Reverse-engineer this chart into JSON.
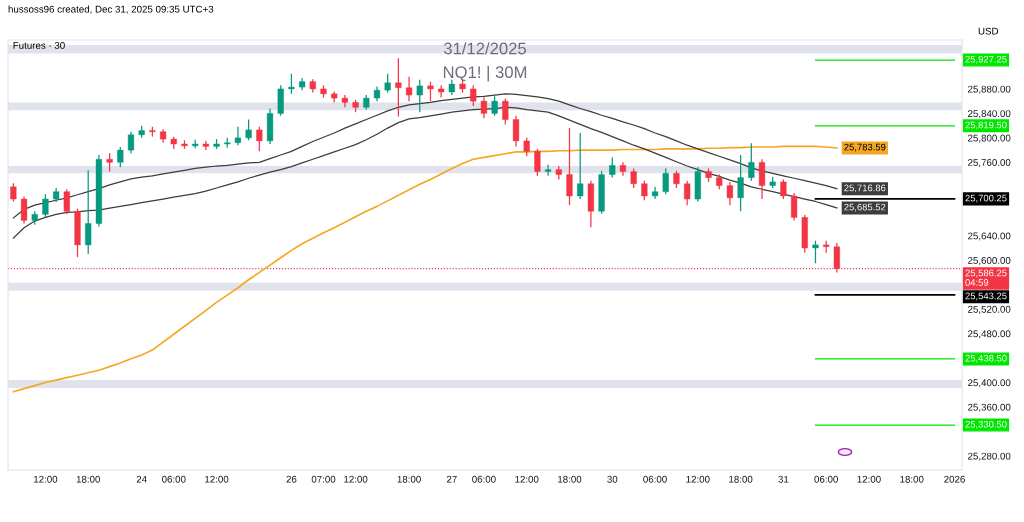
{
  "chart_data": {
    "type": "candlestick",
    "title": "31/12/2025",
    "subtitle": "NQ1! | 30M",
    "ylabel": "USD",
    "annotations": [
      "hussoss96 created, Dec 31, 2025 09:35 UTC+3",
      "Futures · 30"
    ],
    "categories": [
      null,
      null,
      null,
      "12:00",
      null,
      null,
      null,
      "18:00",
      null,
      null,
      null,
      null,
      "24",
      null,
      null,
      "06:00",
      null,
      null,
      null,
      "12:00",
      null,
      null,
      null,
      null,
      null,
      null,
      "26",
      null,
      null,
      "07:00",
      null,
      null,
      "12:00",
      null,
      null,
      null,
      null,
      "18:00",
      null,
      null,
      null,
      "27",
      null,
      null,
      "06:00",
      null,
      null,
      null,
      "12:00",
      null,
      null,
      null,
      "18:00",
      null,
      null,
      null,
      "30",
      null,
      null,
      null,
      "06:00",
      null,
      null,
      null,
      "12:00",
      null,
      null,
      null,
      "18:00",
      null,
      null,
      null,
      "31",
      null,
      null,
      null,
      "06:00",
      null,
      null,
      null,
      "12:00",
      null,
      null,
      null,
      "18:00",
      null,
      null,
      null,
      "2026"
    ],
    "ohlc": [
      [
        25720,
        25726,
        25696,
        25700
      ],
      [
        25700,
        25704,
        25660,
        25665
      ],
      [
        25665,
        25680,
        25658,
        25675
      ],
      [
        25675,
        25708,
        25670,
        25700
      ],
      [
        25700,
        25718,
        25695,
        25712
      ],
      [
        25712,
        25716,
        25675,
        25680
      ],
      [
        25680,
        25684,
        25605,
        25625
      ],
      [
        25625,
        25747,
        25610,
        25660
      ],
      [
        25660,
        25772,
        25655,
        25765
      ],
      [
        25765,
        25775,
        25745,
        25760
      ],
      [
        25760,
        25785,
        25752,
        25780
      ],
      [
        25780,
        25810,
        25775,
        25805
      ],
      [
        25805,
        25820,
        25800,
        25812
      ],
      [
        25812,
        25818,
        25802,
        25810
      ],
      [
        25810,
        25814,
        25792,
        25798
      ],
      [
        25798,
        25802,
        25782,
        25790
      ],
      [
        25790,
        25796,
        25782,
        25787
      ],
      [
        25787,
        25797,
        25783,
        25790
      ],
      [
        25790,
        25795,
        25780,
        25786
      ],
      [
        25786,
        25798,
        25782,
        25790
      ],
      [
        25790,
        25800,
        25784,
        25792
      ],
      [
        25792,
        25818,
        25788,
        25800
      ],
      [
        25800,
        25830,
        25796,
        25813
      ],
      [
        25813,
        25818,
        25778,
        25795
      ],
      [
        25795,
        25848,
        25790,
        25840
      ],
      [
        25840,
        25886,
        25836,
        25880
      ],
      [
        25880,
        25905,
        25872,
        25883
      ],
      [
        25883,
        25898,
        25878,
        25892
      ],
      [
        25892,
        25896,
        25874,
        25880
      ],
      [
        25880,
        25886,
        25866,
        25872
      ],
      [
        25872,
        25876,
        25858,
        25865
      ],
      [
        25865,
        25870,
        25850,
        25858
      ],
      [
        25858,
        25862,
        25842,
        25850
      ],
      [
        25850,
        25870,
        25846,
        25865
      ],
      [
        25865,
        25884,
        25860,
        25878
      ],
      [
        25878,
        25905,
        25874,
        25890
      ],
      [
        25890,
        25930,
        25835,
        25882
      ],
      [
        25882,
        25900,
        25860,
        25870
      ],
      [
        25870,
        25895,
        25842,
        25885
      ],
      [
        25885,
        25892,
        25860,
        25880
      ],
      [
        25880,
        25886,
        25866,
        25875
      ],
      [
        25875,
        25895,
        25870,
        25888
      ],
      [
        25888,
        25895,
        25874,
        25880
      ],
      [
        25880,
        25886,
        25852,
        25860
      ],
      [
        25860,
        25866,
        25832,
        25840
      ],
      [
        25840,
        25868,
        25836,
        25860
      ],
      [
        25860,
        25864,
        25822,
        25830
      ],
      [
        25830,
        25836,
        25786,
        25795
      ],
      [
        25795,
        25800,
        25770,
        25778
      ],
      [
        25778,
        25782,
        25738,
        25745
      ],
      [
        25745,
        25756,
        25738,
        25748
      ],
      [
        25748,
        25754,
        25732,
        25740
      ],
      [
        25740,
        25816,
        25690,
        25705
      ],
      [
        25705,
        25808,
        25700,
        25725
      ],
      [
        25725,
        25730,
        25654,
        25680
      ],
      [
        25680,
        25746,
        25676,
        25740
      ],
      [
        25740,
        25768,
        25735,
        25755
      ],
      [
        25755,
        25760,
        25738,
        25745
      ],
      [
        25745,
        25750,
        25718,
        25725
      ],
      [
        25725,
        25730,
        25698,
        25705
      ],
      [
        25705,
        25720,
        25700,
        25712
      ],
      [
        25712,
        25750,
        25708,
        25742
      ],
      [
        25742,
        25746,
        25718,
        25725
      ],
      [
        25725,
        25730,
        25690,
        25700
      ],
      [
        25700,
        25752,
        25696,
        25745
      ],
      [
        25745,
        25750,
        25728,
        25735
      ],
      [
        25735,
        25740,
        25716,
        25722
      ],
      [
        25722,
        25728,
        25690,
        25702
      ],
      [
        25702,
        25772,
        25680,
        25735
      ],
      [
        25735,
        25791,
        25730,
        25760
      ],
      [
        25760,
        25765,
        25700,
        25722
      ],
      [
        25722,
        25736,
        25718,
        25728
      ],
      [
        25728,
        25732,
        25700,
        25705
      ],
      [
        25705,
        25710,
        25665,
        25670
      ],
      [
        25670,
        25674,
        25612,
        25620
      ],
      [
        25620,
        25632,
        25595,
        25625
      ],
      [
        25625,
        25632,
        25612,
        25622
      ],
      [
        25622,
        25628,
        25580,
        25586.25
      ],
      null,
      null,
      null,
      null,
      null,
      null,
      null,
      null,
      null,
      null,
      null
    ],
    "colors": [
      "#f23645",
      "#f23645",
      "#089981",
      "#089981",
      "#089981",
      "#f23645",
      "#f23645",
      "#089981",
      "#089981",
      "#f23645",
      "#089981",
      "#089981",
      "#089981",
      "#f23645",
      "#f23645",
      "#f23645",
      "#f23645",
      "#089981",
      "#f23645",
      "#089981",
      "#089981",
      "#089981",
      "#089981",
      "#f23645",
      "#089981",
      "#089981",
      "#089981",
      "#089981",
      "#f23645",
      "#f23645",
      "#f23645",
      "#f23645",
      "#f23645",
      "#089981",
      "#089981",
      "#089981",
      "#f23645",
      "#f23645",
      "#089981",
      "#f23645",
      "#f23645",
      "#089981",
      "#f23645",
      "#f23645",
      "#f23645",
      "#089981",
      "#f23645",
      "#f23645",
      "#f23645",
      "#f23645",
      "#089981",
      "#f23645",
      "#f23645",
      "#089981",
      "#f23645",
      "#089981",
      "#089981",
      "#f23645",
      "#f23645",
      "#f23645",
      "#089981",
      "#089981",
      "#f23645",
      "#f23645",
      "#089981",
      "#f23645",
      "#f23645",
      "#f23645",
      "#089981",
      "#089981",
      "#f23645",
      "#089981",
      "#f23645",
      "#f23645",
      "#f23645",
      "#089981",
      "#f23645",
      "#f23645",
      null,
      null,
      null,
      null,
      null,
      null,
      null,
      null,
      null,
      null,
      null
    ],
    "series": [
      {
        "type": "line",
        "color": "#f5a623",
        "values": [
          25385,
          25390,
          25395,
          25400,
          25404,
          25408,
          25412,
          25416,
          25420,
          25426,
          25432,
          25439,
          25445,
          25453,
          25466,
          25479,
          25492,
          25505,
          25518,
          25531,
          25543,
          25555,
          25568,
          25580,
          25592,
          25604,
          25616,
          25627,
          25636,
          25645,
          25653,
          25662,
          25671,
          25680,
          25688,
          25697,
          25706,
          25715,
          25724,
          25732,
          25741,
          25750,
          25758,
          25765,
          25768,
          25771,
          25774,
          25777,
          25777,
          25778,
          25778,
          25779,
          25779,
          25780,
          25780,
          25780,
          25780,
          25781,
          25781,
          25781,
          25781,
          25782,
          25782,
          25782,
          25782,
          25783,
          25783,
          25784,
          25784,
          25785,
          25785,
          25785,
          25786,
          25786,
          25786,
          25786,
          25785,
          25783.59,
          null,
          null,
          null,
          null,
          null,
          null,
          null,
          null,
          null,
          null,
          null
        ],
        "value_labels": [
          null,
          null,
          null,
          null,
          null,
          null,
          null,
          null,
          null,
          null,
          null,
          null,
          null,
          null,
          null,
          null,
          null,
          null,
          null,
          null,
          null,
          null,
          null,
          null,
          null,
          null,
          null,
          null,
          null,
          null,
          null,
          null,
          null,
          null,
          null,
          null,
          null,
          null,
          null,
          null,
          null,
          null,
          null,
          null,
          null,
          null,
          null,
          null,
          null,
          null,
          null,
          null,
          null,
          null,
          null,
          null,
          null,
          null,
          null,
          null,
          null,
          null,
          null,
          null,
          null,
          null,
          null,
          null,
          null,
          null,
          null,
          null,
          null,
          null,
          null,
          null,
          null,
          "25,783.59",
          null,
          null,
          null,
          null,
          null,
          null,
          null,
          null,
          null,
          null,
          null
        ]
      },
      {
        "type": "line",
        "color": "#3c3c3c",
        "values": [
          25669,
          25683,
          25690,
          25694,
          25698,
          25702,
          25707,
          25712,
          25717,
          25723,
          25728,
          25733,
          25736,
          25738,
          25741,
          25744,
          25747,
          25750,
          25752,
          25754,
          25755,
          25757,
          25759,
          25760,
          25766,
          25772,
          25778,
          25786,
          25794,
          25801,
          25808,
          25816,
          25823,
          25830,
          25837,
          25844,
          25850,
          25854,
          25856,
          25858,
          25861,
          25863,
          25865,
          25867,
          25868,
          25870,
          25872,
          25871,
          25869,
          25867,
          25864,
          25860,
          25854,
          25848,
          25843,
          25837,
          25832,
          25826,
          25821,
          25815,
          25808,
          25802,
          25795,
          25788,
          25782,
          25776,
          25770,
          25764,
          25758,
          25751,
          25746,
          25742,
          25738,
          25734,
          25730,
          25726,
          25722,
          25716.86,
          null,
          null,
          null,
          null,
          null,
          null,
          null,
          null,
          null,
          null,
          null
        ],
        "value_labels": [
          null,
          null,
          null,
          null,
          null,
          null,
          null,
          null,
          null,
          null,
          null,
          null,
          null,
          null,
          null,
          null,
          null,
          null,
          null,
          null,
          null,
          null,
          null,
          null,
          null,
          null,
          null,
          null,
          null,
          null,
          null,
          null,
          null,
          null,
          null,
          null,
          null,
          null,
          null,
          null,
          null,
          null,
          null,
          null,
          null,
          null,
          null,
          null,
          null,
          null,
          null,
          null,
          null,
          null,
          null,
          null,
          null,
          null,
          null,
          null,
          null,
          null,
          null,
          null,
          null,
          null,
          null,
          null,
          null,
          null,
          null,
          null,
          null,
          null,
          null,
          null,
          null,
          "25,716.86",
          null,
          null,
          null,
          null,
          null,
          null,
          null,
          null,
          null,
          null,
          null
        ]
      },
      {
        "type": "line",
        "color": "#3c3c3c",
        "values": [
          25636,
          25653,
          25664,
          25670,
          25675,
          25678,
          25679,
          25681,
          25682,
          25685,
          25688,
          25691,
          25694,
          25697,
          25700,
          25703,
          25706,
          25709,
          25713,
          25718,
          25723,
          25728,
          25734,
          25739,
          25744,
          25748,
          25753,
          25759,
          25765,
          25771,
          25777,
          25783,
          25789,
          25797,
          25806,
          25816,
          25825,
          25831,
          25833,
          25836,
          25839,
          25842,
          25844,
          25846,
          25847,
          25848,
          25850,
          25849,
          25846,
          25844,
          25842,
          25836,
          25829,
          25822,
          25815,
          25809,
          25802,
          25795,
          25788,
          25782,
          25775,
          25768,
          25761,
          25754,
          25748,
          25742,
          25737,
          25731,
          25726,
          25720,
          25716,
          25712,
          25708,
          25704,
          25700,
          25696,
          25691,
          25685.52,
          null,
          null,
          null,
          null,
          null,
          null,
          null,
          null,
          null,
          null,
          null
        ],
        "value_labels": [
          null,
          null,
          null,
          null,
          null,
          null,
          null,
          null,
          null,
          null,
          null,
          null,
          null,
          null,
          null,
          null,
          null,
          null,
          null,
          null,
          null,
          null,
          null,
          null,
          null,
          null,
          null,
          null,
          null,
          null,
          null,
          null,
          null,
          null,
          null,
          null,
          null,
          null,
          null,
          null,
          null,
          null,
          null,
          null,
          null,
          null,
          null,
          null,
          null,
          null,
          null,
          null,
          null,
          null,
          null,
          null,
          null,
          null,
          null,
          null,
          null,
          null,
          null,
          null,
          null,
          null,
          null,
          null,
          null,
          null,
          null,
          null,
          null,
          null,
          null,
          null,
          null,
          "25,685.52",
          null,
          null,
          null,
          null,
          null,
          null,
          null,
          null,
          null,
          null,
          null
        ]
      },
      {
        "type": "line",
        "color": "#00e600",
        "values": [
          null,
          null,
          null,
          null,
          null,
          null,
          null,
          null,
          null,
          null,
          null,
          null,
          null,
          null,
          null,
          null,
          null,
          null,
          null,
          null,
          null,
          null,
          null,
          null,
          null,
          null,
          null,
          null,
          null,
          null,
          null,
          null,
          null,
          null,
          null,
          null,
          null,
          null,
          null,
          null,
          null,
          null,
          null,
          null,
          null,
          null,
          null,
          null,
          null,
          null,
          null,
          null,
          null,
          null,
          null,
          null,
          null,
          null,
          null,
          null,
          null,
          null,
          null,
          null,
          null,
          null,
          null,
          null,
          null,
          null,
          null,
          null,
          null,
          null,
          null,
          25927.25,
          25927.25,
          25927.25,
          25927.25,
          25927.25,
          25927.25,
          25927.25,
          25927.25,
          25927.25,
          25927.25,
          25927.25,
          25927.25,
          25927.25,
          25927.25
        ],
        "value_labels": [
          null,
          null,
          null,
          null,
          null,
          null,
          null,
          null,
          null,
          null,
          null,
          null,
          null,
          null,
          null,
          null,
          null,
          null,
          null,
          null,
          null,
          null,
          null,
          null,
          null,
          null,
          null,
          null,
          null,
          null,
          null,
          null,
          null,
          null,
          null,
          null,
          null,
          null,
          null,
          null,
          null,
          null,
          null,
          null,
          null,
          null,
          null,
          null,
          null,
          null,
          null,
          null,
          null,
          null,
          null,
          null,
          null,
          null,
          null,
          null,
          null,
          null,
          null,
          null,
          null,
          null,
          null,
          null,
          null,
          null,
          null,
          null,
          null,
          null,
          null,
          null,
          null,
          null,
          null,
          null,
          null,
          null,
          null,
          null,
          null,
          null,
          null,
          null,
          "25,927.25"
        ]
      },
      {
        "type": "line",
        "color": "#00e600",
        "values": [
          null,
          null,
          null,
          null,
          null,
          null,
          null,
          null,
          null,
          null,
          null,
          null,
          null,
          null,
          null,
          null,
          null,
          null,
          null,
          null,
          null,
          null,
          null,
          null,
          null,
          null,
          null,
          null,
          null,
          null,
          null,
          null,
          null,
          null,
          null,
          null,
          null,
          null,
          null,
          null,
          null,
          null,
          null,
          null,
          null,
          null,
          null,
          null,
          null,
          null,
          null,
          null,
          null,
          null,
          null,
          null,
          null,
          null,
          null,
          null,
          null,
          null,
          null,
          null,
          null,
          null,
          null,
          null,
          null,
          null,
          null,
          null,
          null,
          null,
          null,
          25819.5,
          25819.5,
          25819.5,
          25819.5,
          25819.5,
          25819.5,
          25819.5,
          25819.5,
          25819.5,
          25819.5,
          25819.5,
          25819.5,
          25819.5,
          25819.5
        ],
        "value_labels": [
          null,
          null,
          null,
          null,
          null,
          null,
          null,
          null,
          null,
          null,
          null,
          null,
          null,
          null,
          null,
          null,
          null,
          null,
          null,
          null,
          null,
          null,
          null,
          null,
          null,
          null,
          null,
          null,
          null,
          null,
          null,
          null,
          null,
          null,
          null,
          null,
          null,
          null,
          null,
          null,
          null,
          null,
          null,
          null,
          null,
          null,
          null,
          null,
          null,
          null,
          null,
          null,
          null,
          null,
          null,
          null,
          null,
          null,
          null,
          null,
          null,
          null,
          null,
          null,
          null,
          null,
          null,
          null,
          null,
          null,
          null,
          null,
          null,
          null,
          null,
          null,
          null,
          null,
          null,
          null,
          null,
          null,
          null,
          null,
          null,
          null,
          null,
          null,
          "25,819.50"
        ]
      },
      {
        "type": "line",
        "color": "#000000",
        "values": [
          null,
          null,
          null,
          null,
          null,
          null,
          null,
          null,
          null,
          null,
          null,
          null,
          null,
          null,
          null,
          null,
          null,
          null,
          null,
          null,
          null,
          null,
          null,
          null,
          null,
          null,
          null,
          null,
          null,
          null,
          null,
          null,
          null,
          null,
          null,
          null,
          null,
          null,
          null,
          null,
          null,
          null,
          null,
          null,
          null,
          null,
          null,
          null,
          null,
          null,
          null,
          null,
          null,
          null,
          null,
          null,
          null,
          null,
          null,
          null,
          null,
          null,
          null,
          null,
          null,
          null,
          null,
          null,
          null,
          null,
          null,
          null,
          null,
          null,
          null,
          25700.25,
          25700.25,
          25700.25,
          25700.25,
          25700.25,
          25700.25,
          25700.25,
          25700.25,
          25700.25,
          25700.25,
          25700.25,
          25700.25,
          25700.25,
          25700.25
        ],
        "value_labels": [
          null,
          null,
          null,
          null,
          null,
          null,
          null,
          null,
          null,
          null,
          null,
          null,
          null,
          null,
          null,
          null,
          null,
          null,
          null,
          null,
          null,
          null,
          null,
          null,
          null,
          null,
          null,
          null,
          null,
          null,
          null,
          null,
          null,
          null,
          null,
          null,
          null,
          null,
          null,
          null,
          null,
          null,
          null,
          null,
          null,
          null,
          null,
          null,
          null,
          null,
          null,
          null,
          null,
          null,
          null,
          null,
          null,
          null,
          null,
          null,
          null,
          null,
          null,
          null,
          null,
          null,
          null,
          null,
          null,
          null,
          null,
          null,
          null,
          null,
          null,
          null,
          null,
          null,
          null,
          null,
          null,
          null,
          null,
          null,
          null,
          null,
          null,
          null,
          "25,700.25"
        ]
      },
      {
        "type": "line",
        "color": "#000000",
        "values": [
          null,
          null,
          null,
          null,
          null,
          null,
          null,
          null,
          null,
          null,
          null,
          null,
          null,
          null,
          null,
          null,
          null,
          null,
          null,
          null,
          null,
          null,
          null,
          null,
          null,
          null,
          null,
          null,
          null,
          null,
          null,
          null,
          null,
          null,
          null,
          null,
          null,
          null,
          null,
          null,
          null,
          null,
          null,
          null,
          null,
          null,
          null,
          null,
          null,
          null,
          null,
          null,
          null,
          null,
          null,
          null,
          null,
          null,
          null,
          null,
          null,
          null,
          null,
          null,
          null,
          null,
          null,
          null,
          null,
          null,
          null,
          null,
          null,
          null,
          null,
          25543.25,
          25543.25,
          25543.25,
          25543.25,
          25543.25,
          25543.25,
          25543.25,
          25543.25,
          25543.25,
          25543.25,
          25543.25,
          25543.25,
          25543.25,
          25543.25
        ],
        "value_labels": [
          null,
          null,
          null,
          null,
          null,
          null,
          null,
          null,
          null,
          null,
          null,
          null,
          null,
          null,
          null,
          null,
          null,
          null,
          null,
          null,
          null,
          null,
          null,
          null,
          null,
          null,
          null,
          null,
          null,
          null,
          null,
          null,
          null,
          null,
          null,
          null,
          null,
          null,
          null,
          null,
          null,
          null,
          null,
          null,
          null,
          null,
          null,
          null,
          null,
          null,
          null,
          null,
          null,
          null,
          null,
          null,
          null,
          null,
          null,
          null,
          null,
          null,
          null,
          null,
          null,
          null,
          null,
          null,
          null,
          null,
          null,
          null,
          null,
          null,
          null,
          null,
          null,
          null,
          null,
          null,
          null,
          null,
          null,
          null,
          null,
          null,
          null,
          null,
          "25,543.25"
        ]
      },
      {
        "type": "line",
        "color": "#00e600",
        "values": [
          null,
          null,
          null,
          null,
          null,
          null,
          null,
          null,
          null,
          null,
          null,
          null,
          null,
          null,
          null,
          null,
          null,
          null,
          null,
          null,
          null,
          null,
          null,
          null,
          null,
          null,
          null,
          null,
          null,
          null,
          null,
          null,
          null,
          null,
          null,
          null,
          null,
          null,
          null,
          null,
          null,
          null,
          null,
          null,
          null,
          null,
          null,
          null,
          null,
          null,
          null,
          null,
          null,
          null,
          null,
          null,
          null,
          null,
          null,
          null,
          null,
          null,
          null,
          null,
          null,
          null,
          null,
          null,
          null,
          null,
          null,
          null,
          null,
          null,
          null,
          25438.5,
          25438.5,
          25438.5,
          25438.5,
          25438.5,
          25438.5,
          25438.5,
          25438.5,
          25438.5,
          25438.5,
          25438.5,
          25438.5,
          25438.5,
          25438.5
        ],
        "value_labels": [
          null,
          null,
          null,
          null,
          null,
          null,
          null,
          null,
          null,
          null,
          null,
          null,
          null,
          null,
          null,
          null,
          null,
          null,
          null,
          null,
          null,
          null,
          null,
          null,
          null,
          null,
          null,
          null,
          null,
          null,
          null,
          null,
          null,
          null,
          null,
          null,
          null,
          null,
          null,
          null,
          null,
          null,
          null,
          null,
          null,
          null,
          null,
          null,
          null,
          null,
          null,
          null,
          null,
          null,
          null,
          null,
          null,
          null,
          null,
          null,
          null,
          null,
          null,
          null,
          null,
          null,
          null,
          null,
          null,
          null,
          null,
          null,
          null,
          null,
          null,
          null,
          null,
          null,
          null,
          null,
          null,
          null,
          null,
          null,
          null,
          null,
          null,
          null,
          "25,438.50"
        ]
      },
      {
        "type": "line",
        "color": "#00e600",
        "values": [
          null,
          null,
          null,
          null,
          null,
          null,
          null,
          null,
          null,
          null,
          null,
          null,
          null,
          null,
          null,
          null,
          null,
          null,
          null,
          null,
          null,
          null,
          null,
          null,
          null,
          null,
          null,
          null,
          null,
          null,
          null,
          null,
          null,
          null,
          null,
          null,
          null,
          null,
          null,
          null,
          null,
          null,
          null,
          null,
          null,
          null,
          null,
          null,
          null,
          null,
          null,
          null,
          null,
          null,
          null,
          null,
          null,
          null,
          null,
          null,
          null,
          null,
          null,
          null,
          null,
          null,
          null,
          null,
          null,
          null,
          null,
          null,
          null,
          null,
          null,
          25330.5,
          25330.5,
          25330.5,
          25330.5,
          25330.5,
          25330.5,
          25330.5,
          25330.5,
          25330.5,
          25330.5,
          25330.5,
          25330.5,
          25330.5,
          25330.5
        ],
        "value_labels": [
          null,
          null,
          null,
          null,
          null,
          null,
          null,
          null,
          null,
          null,
          null,
          null,
          null,
          null,
          null,
          null,
          null,
          null,
          null,
          null,
          null,
          null,
          null,
          null,
          null,
          null,
          null,
          null,
          null,
          null,
          null,
          null,
          null,
          null,
          null,
          null,
          null,
          null,
          null,
          null,
          null,
          null,
          null,
          null,
          null,
          null,
          null,
          null,
          null,
          null,
          null,
          null,
          null,
          null,
          null,
          null,
          null,
          null,
          null,
          null,
          null,
          null,
          null,
          null,
          null,
          null,
          null,
          null,
          null,
          null,
          null,
          null,
          null,
          null,
          null,
          null,
          null,
          null,
          null,
          null,
          null,
          null,
          null,
          null,
          null,
          null,
          null,
          null,
          "25,330.50"
        ]
      }
    ],
    "ref_lines": [
      {
        "axis": "y",
        "value": 25586.25,
        "label": "25,586.25\n04:59",
        "color": "#f23645",
        "line_style": "dotted"
      }
    ],
    "bands": [
      {
        "axis": "y",
        "from": 25938,
        "to": 25952,
        "color": "#e0e3eb"
      },
      {
        "axis": "y",
        "from": 25845,
        "to": 25858,
        "color": "#e0e3eb"
      },
      {
        "axis": "y",
        "from": 25742,
        "to": 25754,
        "color": "#e0e3eb"
      },
      {
        "axis": "y",
        "from": 25550,
        "to": 25563,
        "color": "#e0e3eb"
      },
      {
        "axis": "y",
        "from": 25391,
        "to": 25404,
        "color": "#e0e3eb"
      }
    ],
    "ylim": [
      25257,
      25960
    ],
    "yticks": [
      {
        "value": 25280,
        "label": "25,280.00"
      },
      {
        "value": 25360,
        "label": "25,360.00"
      },
      {
        "value": 25400,
        "label": "25,400.00"
      },
      {
        "value": 25480,
        "label": "25,480.00"
      },
      {
        "value": 25520,
        "label": "25,520.00"
      },
      {
        "value": 25600,
        "label": "25,600.00"
      },
      {
        "value": 25640,
        "label": "25,640.00"
      },
      {
        "value": 25760,
        "label": "25,760.00"
      },
      {
        "value": 25800,
        "label": "25,800.00"
      },
      {
        "value": 25840,
        "label": "25,840.00"
      },
      {
        "value": 25880,
        "label": "25,880.00"
      }
    ],
    "grid": false,
    "legend": false
  }
}
